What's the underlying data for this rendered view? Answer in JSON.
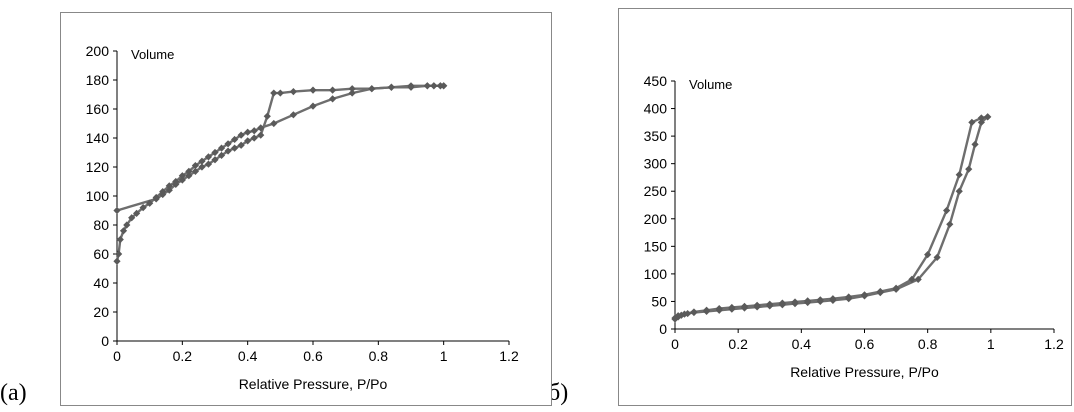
{
  "panels": {
    "a": {
      "label": "(a)"
    },
    "b": {
      "label": "(б)"
    }
  },
  "chart_data": [
    {
      "type": "line",
      "ylabel": "Volume",
      "xlabel": "Relative Pressure, P/Po",
      "xlim": [
        0,
        1.2
      ],
      "ylim": [
        0,
        200
      ],
      "xticks": [
        "0",
        "0.2",
        "0.4",
        "0.6",
        "0.8",
        "1",
        "1.2"
      ],
      "yticks": [
        "0",
        "20",
        "40",
        "60",
        "80",
        "100",
        "120",
        "140",
        "160",
        "180",
        "200"
      ],
      "grid": false,
      "marker_color": "#5a5a5a",
      "line_color": "#6e6e6e",
      "series": [
        {
          "x": [
            0.0,
            0.005,
            0.01,
            0.02,
            0.03,
            0.045,
            0.06,
            0.08,
            0.1,
            0.12,
            0.14,
            0.16,
            0.18,
            0.2,
            0.22,
            0.24,
            0.26,
            0.28,
            0.3,
            0.32,
            0.34,
            0.36,
            0.38,
            0.4,
            0.42,
            0.44,
            0.48,
            0.54,
            0.6,
            0.66,
            0.72,
            0.78,
            0.84,
            0.9,
            0.95,
            0.97,
            0.99,
            1.0
          ],
          "values": [
            55,
            60,
            70,
            76,
            80,
            85,
            88,
            92,
            95,
            99,
            103,
            107,
            110,
            114,
            117,
            121,
            124,
            127,
            130,
            133,
            136,
            139,
            142,
            144,
            145,
            147,
            150,
            156,
            162,
            167,
            171,
            174,
            175,
            176,
            176,
            176,
            176,
            176
          ]
        },
        {
          "x": [
            1.0,
            0.99,
            0.97,
            0.95,
            0.9,
            0.84,
            0.78,
            0.72,
            0.66,
            0.6,
            0.54,
            0.5,
            0.48,
            0.46,
            0.44,
            0.42,
            0.4,
            0.38,
            0.36,
            0.34,
            0.32,
            0.3,
            0.28,
            0.26,
            0.24,
            0.22,
            0.2,
            0.18,
            0.16,
            0.14,
            0.12,
            0.0
          ],
          "values": [
            176,
            176,
            176,
            176,
            175,
            175,
            174,
            174,
            173,
            173,
            172,
            171,
            171,
            155,
            142,
            140,
            138,
            135,
            133,
            131,
            128,
            125,
            122,
            120,
            117,
            114,
            111,
            108,
            104,
            101,
            98,
            90
          ]
        }
      ]
    },
    {
      "type": "line",
      "ylabel": "Volume",
      "xlabel": "Relative Pressure, P/Po",
      "xlim": [
        0,
        1.2
      ],
      "ylim": [
        0,
        450
      ],
      "xticks": [
        "0",
        "0.2",
        "0.4",
        "0.6",
        "0.8",
        "1",
        "1.2"
      ],
      "yticks": [
        "0",
        "50",
        "100",
        "150",
        "200",
        "250",
        "300",
        "350",
        "400",
        "450"
      ],
      "grid": false,
      "marker_color": "#5a5a5a",
      "line_color": "#6e6e6e",
      "series": [
        {
          "x": [
            0.0,
            0.01,
            0.02,
            0.04,
            0.06,
            0.1,
            0.14,
            0.18,
            0.22,
            0.26,
            0.3,
            0.34,
            0.38,
            0.42,
            0.46,
            0.5,
            0.55,
            0.6,
            0.65,
            0.7,
            0.77,
            0.83,
            0.87,
            0.9,
            0.93,
            0.95,
            0.97,
            0.99
          ],
          "values": [
            18,
            22,
            25,
            28,
            30,
            32,
            34,
            36,
            38,
            40,
            42,
            44,
            46,
            48,
            50,
            52,
            55,
            60,
            66,
            72,
            90,
            130,
            190,
            250,
            290,
            335,
            375,
            385
          ]
        },
        {
          "x": [
            0.99,
            0.97,
            0.94,
            0.9,
            0.86,
            0.8,
            0.75,
            0.7,
            0.65,
            0.6,
            0.55,
            0.5,
            0.46,
            0.42,
            0.38,
            0.34,
            0.3,
            0.26,
            0.22,
            0.18,
            0.14,
            0.1,
            0.06,
            0.03,
            0.01,
            0.0
          ],
          "values": [
            385,
            383,
            375,
            280,
            215,
            135,
            90,
            74,
            68,
            62,
            58,
            55,
            53,
            51,
            49,
            47,
            45,
            43,
            41,
            39,
            37,
            34,
            31,
            27,
            24,
            20
          ]
        }
      ]
    }
  ]
}
